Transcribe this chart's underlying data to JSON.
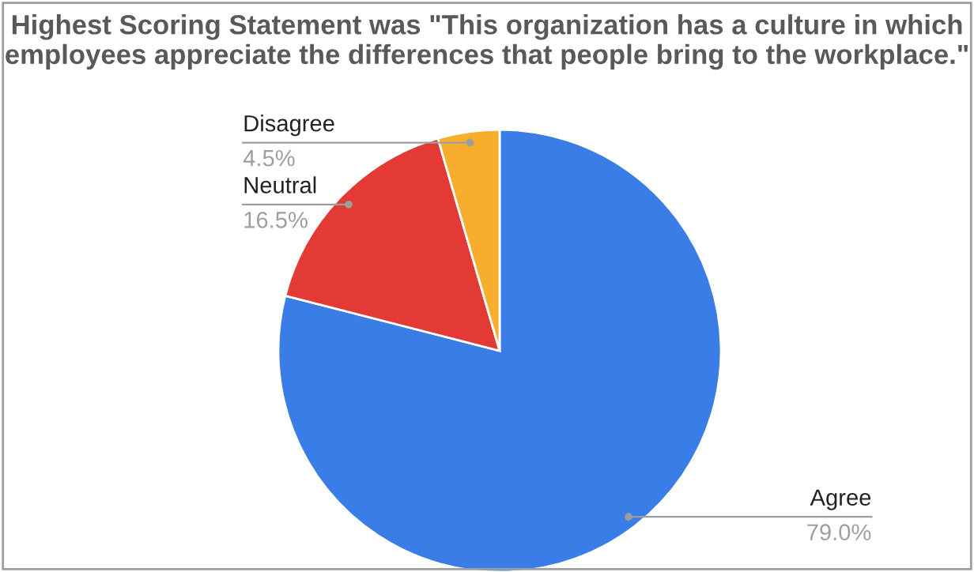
{
  "chart_data": {
    "type": "pie",
    "title": "Highest Scoring Statement was \"This organization has a culture in which employees appreciate the differences that people bring to the workplace.\"",
    "categories": [
      "Agree",
      "Neutral",
      "Disagree"
    ],
    "values": [
      79.0,
      16.5,
      4.5
    ],
    "colors": [
      "#3b7de6",
      "#e43a36",
      "#f7ae2d"
    ],
    "value_labels": [
      "79.0%",
      "16.5%",
      "4.5%"
    ]
  }
}
